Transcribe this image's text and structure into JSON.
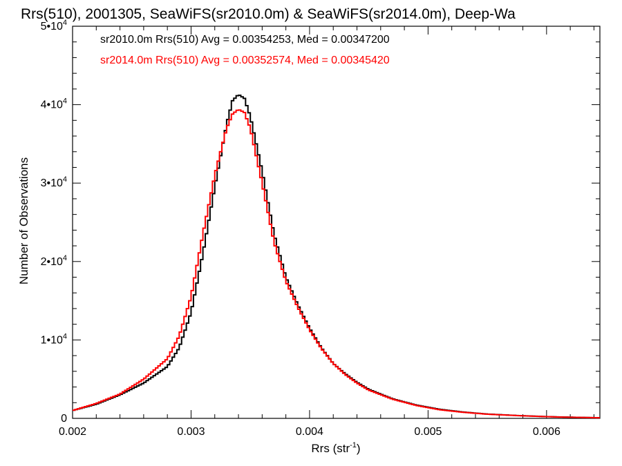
{
  "chart_data": {
    "type": "line",
    "title": "Rrs(510), 2001305, SeaWiFS(sr2010.0m) & SeaWiFS(sr2014.0m), Deep-Wa",
    "xlabel": "Rrs (str",
    "xlabel_sup": "-1",
    "xlabel_close": ")",
    "ylabel": "Number of Observations",
    "xlim": [
      0.002,
      0.00645
    ],
    "ylim": [
      0,
      50000
    ],
    "x_ticks": [
      {
        "value": 0.002,
        "label": "0.002"
      },
      {
        "value": 0.003,
        "label": "0.003"
      },
      {
        "value": 0.004,
        "label": "0.004"
      },
      {
        "value": 0.005,
        "label": "0.005"
      },
      {
        "value": 0.006,
        "label": "0.006"
      }
    ],
    "y_ticks": [
      {
        "value": 0,
        "base": "0",
        "sup": ""
      },
      {
        "value": 10000,
        "base": "1•10",
        "sup": "4"
      },
      {
        "value": 20000,
        "base": "2•10",
        "sup": "4"
      },
      {
        "value": 30000,
        "base": "3•10",
        "sup": "4"
      },
      {
        "value": 40000,
        "base": "4•10",
        "sup": "4"
      },
      {
        "value": 50000,
        "base": "5•10",
        "sup": "4"
      }
    ],
    "grid": false,
    "legend_position": "top-left",
    "series": [
      {
        "name": "sr2010.0m",
        "color": "#000000",
        "legend": "sr2010.0m Rrs(510) Avg = 0.00354253, Med = 0.00347200",
        "x": [
          0.002,
          0.0022,
          0.0024,
          0.0026,
          0.0028,
          0.0029,
          0.003,
          0.0031,
          0.0032,
          0.0033,
          0.00335,
          0.0034,
          0.00345,
          0.0035,
          0.0036,
          0.0037,
          0.0038,
          0.0039,
          0.004,
          0.0041,
          0.0042,
          0.0043,
          0.0044,
          0.0045,
          0.0047,
          0.0049,
          0.0051,
          0.0053,
          0.0055,
          0.0058,
          0.0061,
          0.00645
        ],
        "y": [
          1000,
          1800,
          3000,
          4500,
          6600,
          9000,
          13500,
          21000,
          29500,
          37500,
          40500,
          41300,
          40800,
          38500,
          31500,
          23500,
          18000,
          14500,
          11500,
          9000,
          7000,
          5700,
          4600,
          3700,
          2500,
          1700,
          1150,
          800,
          550,
          330,
          180,
          80
        ]
      },
      {
        "name": "sr2014.0m",
        "color": "#ff0000",
        "legend": "sr2014.0m Rrs(510) Avg = 0.00352574, Med = 0.00345420",
        "x": [
          0.002,
          0.0022,
          0.0024,
          0.0026,
          0.0028,
          0.0029,
          0.003,
          0.0031,
          0.0032,
          0.0033,
          0.00335,
          0.0034,
          0.00345,
          0.0035,
          0.0036,
          0.0037,
          0.0038,
          0.0039,
          0.004,
          0.0041,
          0.0042,
          0.0043,
          0.0044,
          0.0045,
          0.0047,
          0.0049,
          0.0051,
          0.0053,
          0.0055,
          0.0058,
          0.0061,
          0.00645
        ],
        "y": [
          1000,
          1900,
          3100,
          5000,
          7600,
          10500,
          15500,
          23500,
          31000,
          37000,
          38800,
          39400,
          39000,
          37000,
          30000,
          22500,
          17500,
          14200,
          11300,
          8900,
          7000,
          5600,
          4500,
          3600,
          2450,
          1650,
          1100,
          770,
          530,
          320,
          170,
          75
        ]
      }
    ]
  }
}
